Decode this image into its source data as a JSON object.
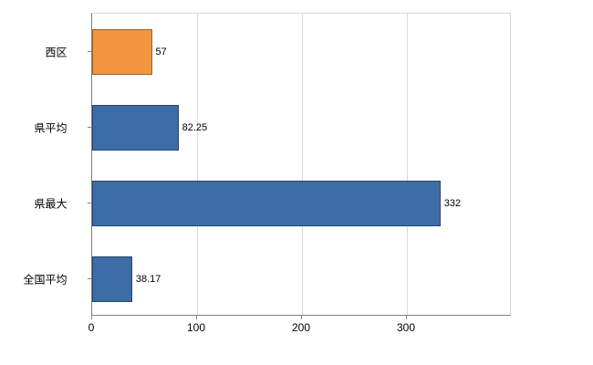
{
  "chart_data": {
    "type": "bar",
    "orientation": "horizontal",
    "title": "",
    "xlabel": "",
    "ylabel": "",
    "categories": [
      "西区",
      "県平均",
      "県最大",
      "全国平均"
    ],
    "values": [
      57,
      82.25,
      332,
      38.17
    ],
    "value_labels": [
      "57",
      "82.25",
      "332",
      "38.17"
    ],
    "bar_colors": [
      "#F2953F",
      "#3C6DA6",
      "#3C6DA6",
      "#3C6DA6"
    ],
    "xlim": [
      0,
      400
    ],
    "xticks": [
      0,
      100,
      200,
      300
    ],
    "xtick_labels": [
      "0",
      "100",
      "200",
      "300"
    ],
    "grid": "vertical",
    "legend": "none",
    "colors": {
      "grid": "#d9d9d9",
      "axis": "#808080",
      "background": "#ffffff",
      "text": "#000000"
    }
  }
}
